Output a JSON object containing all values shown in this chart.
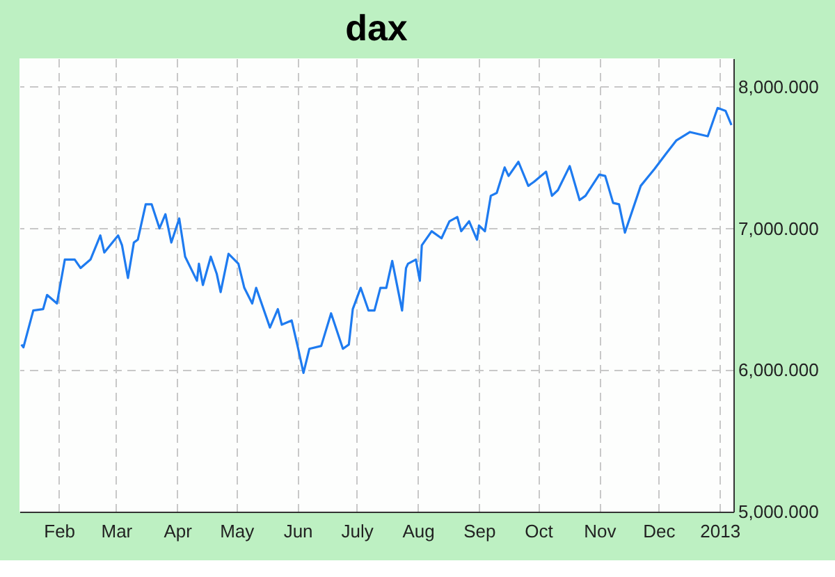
{
  "chart_data": {
    "type": "line",
    "title": "dax",
    "x": [
      "2012-01-13",
      "2012-01-14",
      "2012-01-19",
      "2012-01-24",
      "2012-01-26",
      "2012-01-31",
      "2012-02-04",
      "2012-02-09",
      "2012-02-12",
      "2012-02-17",
      "2012-02-22",
      "2012-02-24",
      "2012-03-02",
      "2012-03-04",
      "2012-03-07",
      "2012-03-10",
      "2012-03-12",
      "2012-03-16",
      "2012-03-19",
      "2012-03-23",
      "2012-03-26",
      "2012-03-29",
      "2012-04-02",
      "2012-04-05",
      "2012-04-11",
      "2012-04-12",
      "2012-04-14",
      "2012-04-18",
      "2012-04-21",
      "2012-04-23",
      "2012-04-27",
      "2012-05-02",
      "2012-05-05",
      "2012-05-09",
      "2012-05-11",
      "2012-05-18",
      "2012-05-22",
      "2012-05-24",
      "2012-05-29",
      "2012-06-01",
      "2012-06-04",
      "2012-06-07",
      "2012-06-13",
      "2012-06-18",
      "2012-06-24",
      "2012-06-27",
      "2012-06-29",
      "2012-07-03",
      "2012-07-07",
      "2012-07-10",
      "2012-07-13",
      "2012-07-16",
      "2012-07-19",
      "2012-07-24",
      "2012-07-26",
      "2012-07-27",
      "2012-07-31",
      "2012-08-02",
      "2012-08-03",
      "2012-08-08",
      "2012-08-13",
      "2012-08-17",
      "2012-08-21",
      "2012-08-23",
      "2012-08-27",
      "2012-08-31",
      "2012-09-01",
      "2012-09-04",
      "2012-09-07",
      "2012-09-10",
      "2012-09-14",
      "2012-09-16",
      "2012-09-21",
      "2012-09-26",
      "2012-09-29",
      "2012-10-05",
      "2012-10-08",
      "2012-10-11",
      "2012-10-17",
      "2012-10-22",
      "2012-10-25",
      "2012-11-01",
      "2012-11-04",
      "2012-11-08",
      "2012-11-11",
      "2012-11-14",
      "2012-11-22",
      "2012-11-29",
      "2012-12-05",
      "2012-12-10",
      "2012-12-17",
      "2012-12-26",
      "2012-12-31",
      "2013-01-04",
      "2013-01-07"
    ],
    "series": [
      {
        "color": "#1e7bf0",
        "values": [
          6180,
          6160,
          6420,
          6430,
          6530,
          6470,
          6780,
          6780,
          6720,
          6780,
          6950,
          6830,
          6950,
          6880,
          6650,
          6900,
          6920,
          7170,
          7170,
          7000,
          7100,
          6900,
          7070,
          6800,
          6630,
          6750,
          6600,
          6800,
          6680,
          6550,
          6820,
          6750,
          6580,
          6470,
          6580,
          6300,
          6430,
          6320,
          6350,
          6170,
          5980,
          6150,
          6170,
          6400,
          6150,
          6180,
          6430,
          6580,
          6420,
          6420,
          6580,
          6580,
          6770,
          6420,
          6720,
          6750,
          6780,
          6630,
          6880,
          6980,
          6930,
          7050,
          7080,
          6980,
          7050,
          6920,
          7020,
          6980,
          7230,
          7250,
          7430,
          7370,
          7470,
          7300,
          7330,
          7400,
          7230,
          7270,
          7440,
          7200,
          7230,
          7380,
          7370,
          7180,
          7170,
          6970,
          7300,
          7420,
          7530,
          7620,
          7680,
          7650,
          7850,
          7830,
          7730
        ]
      }
    ],
    "xlim": [
      "2012-01-12",
      "2013-01-08"
    ],
    "xticks": [
      {
        "value": "2012-02-01",
        "label": "Feb"
      },
      {
        "value": "2012-03-01",
        "label": "Mar"
      },
      {
        "value": "2012-04-01",
        "label": "Apr"
      },
      {
        "value": "2012-05-01",
        "label": "May"
      },
      {
        "value": "2012-06-01",
        "label": "Jun"
      },
      {
        "value": "2012-07-01",
        "label": "July"
      },
      {
        "value": "2012-08-01",
        "label": "Aug"
      },
      {
        "value": "2012-09-01",
        "label": "Sep"
      },
      {
        "value": "2012-10-01",
        "label": "Oct"
      },
      {
        "value": "2012-11-01",
        "label": "Nov"
      },
      {
        "value": "2012-12-01",
        "label": "Dec"
      },
      {
        "value": "2013-01-01",
        "label": "2013"
      }
    ],
    "ylim": [
      5000,
      8200
    ],
    "yticks": [
      {
        "value": 5000,
        "label": "5,000.000"
      },
      {
        "value": 6000,
        "label": "6,000.000"
      },
      {
        "value": 7000,
        "label": "7,000.000"
      },
      {
        "value": 8000,
        "label": "8,000.000"
      }
    ],
    "grid": true,
    "marker": "none",
    "line_style": "solid"
  }
}
